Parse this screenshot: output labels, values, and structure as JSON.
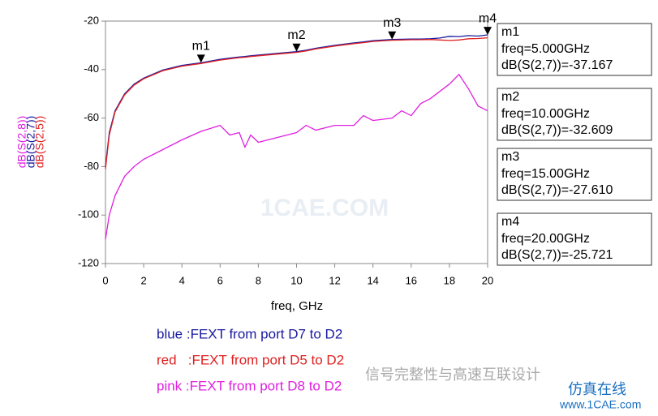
{
  "chart_data": {
    "type": "line",
    "xlabel": "freq, GHz",
    "x": [
      0,
      0.2,
      0.5,
      1,
      1.5,
      2,
      3,
      4,
      5,
      6,
      6.5,
      7,
      7.3,
      7.6,
      8,
      9,
      10,
      10.5,
      11,
      12,
      13,
      13.5,
      14,
      15,
      15.5,
      16,
      16.5,
      17,
      17.5,
      18,
      18.5,
      19,
      19.5,
      20
    ],
    "series": [
      {
        "name": "dB(S(2,8))",
        "color": "#e020e0",
        "values": [
          -110,
          -100,
          -92,
          -84,
          -80,
          -77,
          -73,
          -69,
          -65.5,
          -63,
          -67,
          -66,
          -72,
          -67,
          -70,
          -68,
          -66,
          -63,
          -65,
          -63,
          -63,
          -59,
          -61,
          -60,
          -57,
          -59,
          -54,
          -52,
          -49,
          -46,
          -42,
          -48,
          -55,
          -57
        ]
      },
      {
        "name": "dB(S(2,7))",
        "color": "#1a1aa0",
        "values": [
          -80,
          -66,
          -57,
          -50,
          -46,
          -43.5,
          -40.2,
          -38.3,
          -37.2,
          -35.8,
          -35.3,
          -34.8,
          -34.6,
          -34.3,
          -34,
          -33.3,
          -32.6,
          -32,
          -31.2,
          -30,
          -29,
          -28.6,
          -28.1,
          -27.6,
          -27.5,
          -27.4,
          -27.4,
          -27.3,
          -27,
          -26.3,
          -26.4,
          -26,
          -26.2,
          -25.7
        ]
      },
      {
        "name": "dB(S(2,5))",
        "color": "#e02020",
        "values": [
          -81,
          -67,
          -57.5,
          -50.4,
          -46.4,
          -43.8,
          -40.5,
          -38.6,
          -37.5,
          -36.1,
          -35.6,
          -35.1,
          -34.9,
          -34.6,
          -34.3,
          -33.6,
          -32.9,
          -32.3,
          -31.5,
          -30.3,
          -29.3,
          -28.9,
          -28.4,
          -27.9,
          -27.8,
          -27.7,
          -27.7,
          -27.6,
          -27.8,
          -28,
          -27.8,
          -27.3,
          -27.2,
          -26.9
        ]
      }
    ],
    "xlim": [
      0,
      20
    ],
    "xticks": [
      0,
      2,
      4,
      6,
      8,
      10,
      12,
      14,
      16,
      18,
      20
    ],
    "ylim": [
      -120,
      -20
    ],
    "yticks": [
      -120,
      -100,
      -80,
      -60,
      -40,
      -20
    ],
    "markers": [
      {
        "name": "m1",
        "x": 5,
        "y": -37.167,
        "lines": [
          "freq=5.000GHz",
          "dB(S(2,7))=-37.167"
        ]
      },
      {
        "name": "m2",
        "x": 10,
        "y": -32.609,
        "lines": [
          "freq=10.00GHz",
          "dB(S(2,7))=-32.609"
        ]
      },
      {
        "name": "m3",
        "x": 15,
        "y": -27.61,
        "lines": [
          "freq=15.00GHz",
          "dB(S(2,7))=-27.610"
        ]
      },
      {
        "name": "m4",
        "x": 20,
        "y": -25.721,
        "lines": [
          "freq=20.00GHz",
          "dB(S(2,7))=-25.721"
        ]
      }
    ],
    "notes": [
      {
        "text": "blue :FEXT from port D7 to D2",
        "color": "#1a1aa0"
      },
      {
        "text": "red   :FEXT from port D5 to D2",
        "color": "#e02020"
      },
      {
        "text": "pink :FEXT from port D8 to D2",
        "color": "#e020e0"
      }
    ],
    "watermarks": [
      "1CAE.COM",
      "信号完整性与高速互联设计",
      "仿真在线",
      "www.1CAE.com"
    ]
  }
}
